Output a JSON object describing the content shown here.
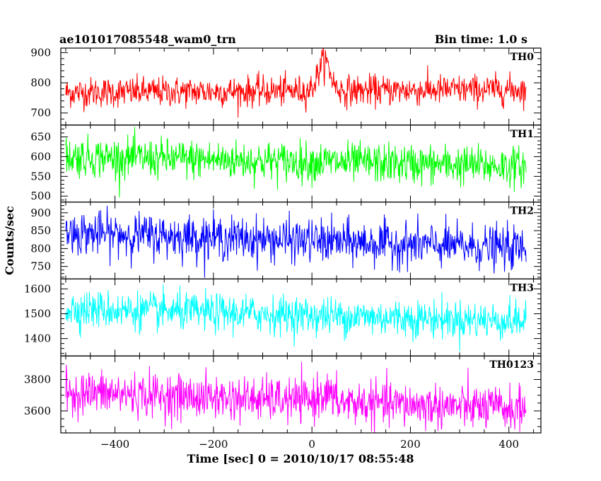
{
  "chart_data": {
    "type": "line",
    "title": "ae101017085548_wam0_trn",
    "subtitle": "Bin time: 1.0 s",
    "xlabel": "Time [sec] 0 = 2010/10/17 08:55:48",
    "ylabel": "Counts/sec",
    "xlim": [
      -510,
      465
    ],
    "x_range_data": [
      -500,
      435
    ],
    "bin_time_s": 1.0,
    "xticks": [
      -400,
      -200,
      0,
      200,
      400
    ],
    "xtick_labels": [
      "−400",
      "−200",
      "0",
      "200",
      "400"
    ],
    "grid": false,
    "series": [
      {
        "name": "TH0",
        "color": "#ff0000",
        "ylim": [
          660,
          915
        ],
        "yticks": [
          700,
          800,
          900
        ],
        "baseline": 768,
        "sigma": 25,
        "trend_end": 10,
        "burst": {
          "center": 25,
          "width": 12,
          "amplitude": 100
        }
      },
      {
        "name": "TH1",
        "color": "#00ff00",
        "ylim": [
          485,
          680
        ],
        "yticks": [
          500,
          550,
          600,
          650
        ],
        "baseline": 600,
        "sigma": 25,
        "trend_end": -25,
        "burst": null
      },
      {
        "name": "TH2",
        "color": "#0000ff",
        "ylim": [
          715,
          930
        ],
        "yticks": [
          750,
          800,
          850,
          900
        ],
        "baseline": 845,
        "sigma": 30,
        "trend_end": -45,
        "burst": null
      },
      {
        "name": "TH3",
        "color": "#00ffff",
        "ylim": [
          1330,
          1640
        ],
        "yticks": [
          1400,
          1500,
          1600
        ],
        "baseline": 1520,
        "sigma": 38,
        "trend_end": -50,
        "burst": null
      },
      {
        "name": "TH0123",
        "color": "#ff00ff",
        "ylim": [
          3460,
          3950
        ],
        "yticks": [
          3600,
          3800
        ],
        "baseline": 3720,
        "sigma": 70,
        "trend_end": -110,
        "burst": {
          "center": 25,
          "width": 12,
          "amplitude": 60
        }
      }
    ]
  }
}
